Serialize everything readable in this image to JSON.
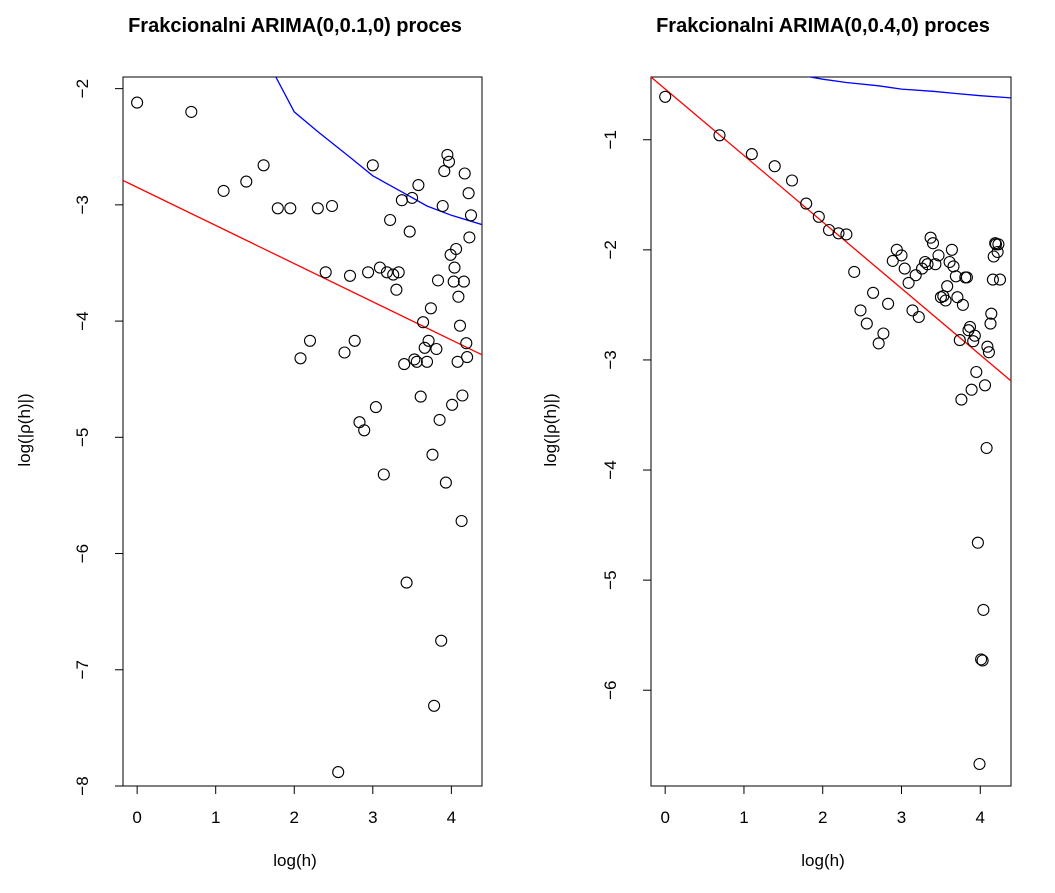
{
  "chart_data": [
    {
      "type": "scatter",
      "title": "Frakcionalni ARIMA(0,0.1,0) proces",
      "xlabel": "log(h)",
      "ylabel": "log(|ρ(h)|)",
      "xlim": [
        -0.18,
        4.39
      ],
      "ylim": [
        -8.0,
        -1.9
      ],
      "xticks": [
        0,
        1,
        2,
        3,
        4
      ],
      "yticks": [
        -8,
        -7,
        -6,
        -5,
        -4,
        -3,
        -2
      ],
      "grid": false,
      "points": [
        [
          0.0,
          -2.12
        ],
        [
          0.69,
          -2.2
        ],
        [
          1.1,
          -2.88
        ],
        [
          1.39,
          -2.8
        ],
        [
          1.61,
          -2.66
        ],
        [
          1.79,
          -3.03
        ],
        [
          1.95,
          -3.03
        ],
        [
          2.08,
          -4.32
        ],
        [
          2.2,
          -4.17
        ],
        [
          2.3,
          -3.03
        ],
        [
          2.4,
          -3.58
        ],
        [
          2.48,
          -3.01
        ],
        [
          2.56,
          -7.88
        ],
        [
          2.64,
          -4.27
        ],
        [
          2.71,
          -3.61
        ],
        [
          2.77,
          -4.17
        ],
        [
          2.83,
          -4.87
        ],
        [
          2.89,
          -4.94
        ],
        [
          2.94,
          -3.58
        ],
        [
          3.0,
          -2.66
        ],
        [
          3.04,
          -4.74
        ],
        [
          3.09,
          -3.54
        ],
        [
          3.14,
          -5.32
        ],
        [
          3.18,
          -3.58
        ],
        [
          3.22,
          -3.13
        ],
        [
          3.26,
          -3.6
        ],
        [
          3.3,
          -3.73
        ],
        [
          3.33,
          -3.58
        ],
        [
          3.37,
          -2.96
        ],
        [
          3.4,
          -4.37
        ],
        [
          3.43,
          -6.25
        ],
        [
          3.47,
          -3.23
        ],
        [
          3.5,
          -2.94
        ],
        [
          3.53,
          -4.33
        ],
        [
          3.56,
          -4.35
        ],
        [
          3.58,
          -2.83
        ],
        [
          3.61,
          -4.65
        ],
        [
          3.64,
          -4.01
        ],
        [
          3.66,
          -4.23
        ],
        [
          3.69,
          -4.35
        ],
        [
          3.71,
          -4.17
        ],
        [
          3.74,
          -3.89
        ],
        [
          3.76,
          -5.15
        ],
        [
          3.78,
          -7.31
        ],
        [
          3.81,
          -4.24
        ],
        [
          3.83,
          -3.65
        ],
        [
          3.85,
          -4.85
        ],
        [
          3.87,
          -6.75
        ],
        [
          3.89,
          -3.01
        ],
        [
          3.91,
          -2.71
        ],
        [
          3.93,
          -5.39
        ],
        [
          3.95,
          -2.57
        ],
        [
          3.97,
          -2.63
        ],
        [
          3.99,
          -3.43
        ],
        [
          4.01,
          -4.72
        ],
        [
          4.03,
          -3.66
        ],
        [
          4.04,
          -3.54
        ],
        [
          4.06,
          -3.38
        ],
        [
          4.08,
          -4.35
        ],
        [
          4.09,
          -3.79
        ],
        [
          4.11,
          -4.04
        ],
        [
          4.13,
          -5.72
        ],
        [
          4.14,
          -4.64
        ],
        [
          4.16,
          -3.66
        ],
        [
          4.17,
          -2.73
        ],
        [
          4.19,
          -4.19
        ],
        [
          4.2,
          -4.31
        ],
        [
          4.22,
          -2.9
        ],
        [
          4.23,
          -3.28
        ],
        [
          4.25,
          -3.09
        ]
      ],
      "series": [
        {
          "line": [
            [
              0.0,
              -1.17
            ],
            [
              1.0,
              -1.45
            ],
            [
              1.61,
              -1.7
            ],
            [
              2.0,
              -2.2
            ],
            [
              2.3,
              -2.37
            ],
            [
              2.71,
              -2.59
            ],
            [
              3.0,
              -2.75
            ],
            [
              3.4,
              -2.9
            ],
            [
              3.69,
              -3.01
            ],
            [
              4.0,
              -3.09
            ],
            [
              4.39,
              -3.17
            ]
          ],
          "color": "#0000ff"
        },
        {
          "line": [
            [
              -0.18,
              -2.79
            ],
            [
              4.39,
              -4.29
            ]
          ],
          "color": "#ff0000"
        }
      ]
    },
    {
      "type": "scatter",
      "title": "Frakcionalni ARIMA(0,0.4,0) proces",
      "xlabel": "log(h)",
      "ylabel": "log(|ρ(h)|)",
      "xlim": [
        -0.18,
        4.39
      ],
      "ylim": [
        -6.87,
        -0.43
      ],
      "xticks": [
        0,
        1,
        2,
        3,
        4
      ],
      "yticks": [
        -6,
        -5,
        -4,
        -3,
        -2,
        -1
      ],
      "grid": false,
      "points": [
        [
          0.0,
          -0.61
        ],
        [
          0.69,
          -0.96
        ],
        [
          1.1,
          -1.13
        ],
        [
          1.39,
          -1.24
        ],
        [
          1.61,
          -1.37
        ],
        [
          1.79,
          -1.58
        ],
        [
          1.95,
          -1.7
        ],
        [
          2.08,
          -1.82
        ],
        [
          2.2,
          -1.85
        ],
        [
          2.3,
          -1.86
        ],
        [
          2.4,
          -2.2
        ],
        [
          2.48,
          -2.55
        ],
        [
          2.56,
          -2.67
        ],
        [
          2.64,
          -2.39
        ],
        [
          2.71,
          -2.85
        ],
        [
          2.77,
          -2.76
        ],
        [
          2.83,
          -2.49
        ],
        [
          2.89,
          -2.1
        ],
        [
          2.94,
          -2.0
        ],
        [
          3.0,
          -2.05
        ],
        [
          3.04,
          -2.17
        ],
        [
          3.09,
          -2.3
        ],
        [
          3.14,
          -2.55
        ],
        [
          3.18,
          -2.23
        ],
        [
          3.22,
          -2.61
        ],
        [
          3.26,
          -2.17
        ],
        [
          3.3,
          -2.11
        ],
        [
          3.33,
          -2.13
        ],
        [
          3.37,
          -1.89
        ],
        [
          3.4,
          -1.94
        ],
        [
          3.43,
          -2.13
        ],
        [
          3.47,
          -2.05
        ],
        [
          3.5,
          -2.43
        ],
        [
          3.53,
          -2.42
        ],
        [
          3.56,
          -2.46
        ],
        [
          3.58,
          -2.33
        ],
        [
          3.61,
          -2.11
        ],
        [
          3.64,
          -2.0
        ],
        [
          3.66,
          -2.15
        ],
        [
          3.69,
          -2.24
        ],
        [
          3.71,
          -2.43
        ],
        [
          3.74,
          -2.82
        ],
        [
          3.76,
          -3.36
        ],
        [
          3.78,
          -2.5
        ],
        [
          3.81,
          -2.25
        ],
        [
          3.83,
          -2.25
        ],
        [
          3.85,
          -2.73
        ],
        [
          3.87,
          -2.7
        ],
        [
          3.89,
          -3.27
        ],
        [
          3.91,
          -2.83
        ],
        [
          3.93,
          -2.78
        ],
        [
          3.95,
          -3.11
        ],
        [
          3.97,
          -4.66
        ],
        [
          3.99,
          -6.67
        ],
        [
          4.01,
          -5.72
        ],
        [
          4.03,
          -5.73
        ],
        [
          4.04,
          -5.27
        ],
        [
          4.06,
          -3.23
        ],
        [
          4.08,
          -3.8
        ],
        [
          4.09,
          -2.88
        ],
        [
          4.11,
          -2.93
        ],
        [
          4.13,
          -2.67
        ],
        [
          4.14,
          -2.58
        ],
        [
          4.16,
          -2.27
        ],
        [
          4.17,
          -2.06
        ],
        [
          4.19,
          -1.94
        ],
        [
          4.2,
          -1.95
        ],
        [
          4.22,
          -2.02
        ],
        [
          4.23,
          -1.95
        ],
        [
          4.25,
          -2.27
        ]
      ],
      "series": [
        {
          "line": [
            [
              1.0,
              -0.32
            ],
            [
              1.61,
              -0.4
            ],
            [
              2.0,
              -0.45
            ],
            [
              2.3,
              -0.48
            ],
            [
              2.71,
              -0.51
            ],
            [
              3.0,
              -0.54
            ],
            [
              3.4,
              -0.56
            ],
            [
              3.69,
              -0.58
            ],
            [
              4.0,
              -0.6
            ],
            [
              4.39,
              -0.62
            ]
          ],
          "color": "#0000ff"
        },
        {
          "line": [
            [
              -0.18,
              -0.43
            ],
            [
              4.39,
              -3.19
            ]
          ],
          "color": "#ff0000"
        }
      ]
    }
  ]
}
